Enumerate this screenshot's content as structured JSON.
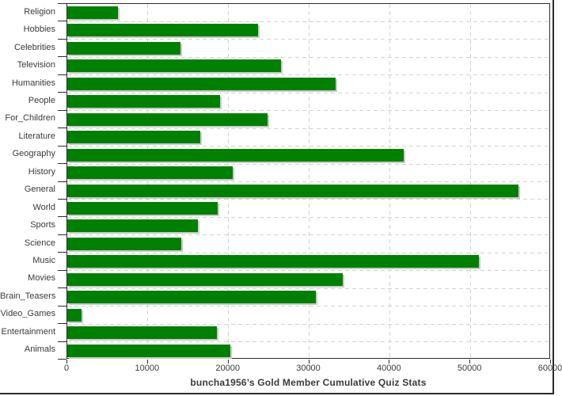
{
  "chart_data": {
    "type": "bar",
    "orientation": "horizontal",
    "title": "buncha1956’s Gold Member Cumulative Quiz Stats",
    "categories": [
      "Religion",
      "Hobbies",
      "Celebrities",
      "Television",
      "Humanities",
      "People",
      "For_Children",
      "Literature",
      "Geography",
      "History",
      "General",
      "World",
      "Sports",
      "Science",
      "Music",
      "Movies",
      "Brain_Teasers",
      "Video_Games",
      "Entertainment",
      "Animals"
    ],
    "values": [
      6300,
      23700,
      14000,
      26500,
      33300,
      18900,
      24800,
      16500,
      41700,
      20500,
      56000,
      18700,
      16200,
      14100,
      51100,
      34200,
      30800,
      1800,
      18600,
      20200
    ],
    "xlim": [
      0,
      60000
    ],
    "x_ticks": [
      0,
      10000,
      20000,
      30000,
      40000,
      50000,
      60000
    ],
    "x_tick_labels": [
      "0",
      "10000",
      "20000",
      "30000",
      "40000",
      "50000",
      "60000"
    ],
    "grid": true,
    "legend": "none",
    "colors": {
      "bar": "#008000",
      "bar_shadow": "#c9c9c9",
      "gridline": "#d2d2d2",
      "axis": "#2b2b2b",
      "text": "#3a3a3a",
      "plot_background": "#ffffff"
    }
  }
}
